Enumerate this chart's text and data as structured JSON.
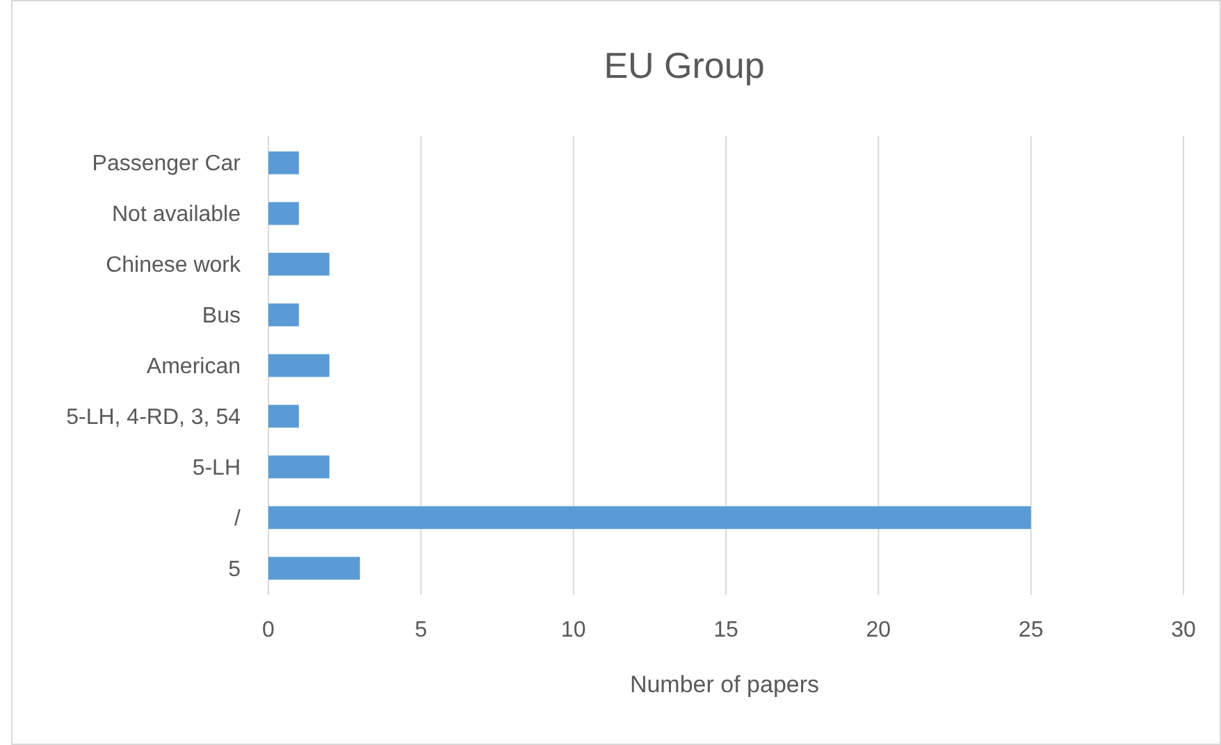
{
  "chart_data": {
    "type": "bar",
    "orientation": "horizontal",
    "title": "EU Group",
    "xlabel": "Number of papers",
    "categories": [
      "Passenger Car",
      "Not available",
      "Chinese work",
      "Bus",
      "American",
      "5-LH, 4-RD, 3, 54",
      "5-LH",
      "/",
      "5"
    ],
    "values": [
      1,
      1,
      2,
      1,
      2,
      1,
      2,
      25,
      3
    ],
    "color": "#5b9bd5",
    "xlim": [
      0,
      30
    ],
    "xticks": [
      0,
      5,
      10,
      15,
      20,
      25,
      30
    ],
    "grid": "x"
  }
}
